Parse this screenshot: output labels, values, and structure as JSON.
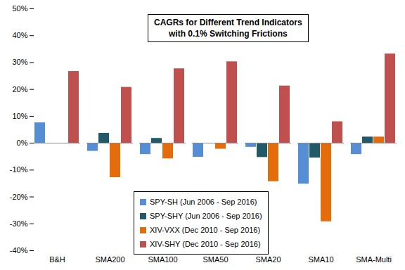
{
  "chart_data": {
    "type": "bar",
    "title": "CAGRs for Different Trend Indicators",
    "subtitle": "with 0.1% Switching Frictions",
    "categories": [
      "B&H",
      "SMA200",
      "SMA100",
      "SMA50",
      "SMA20",
      "SMA10",
      "SMA-Multi"
    ],
    "series": [
      {
        "name": "SPY-SH (Jun 2006 - Sep 2016)",
        "color": "#558ed5",
        "values": [
          7.6,
          -3.0,
          -4.2,
          -5.2,
          -1.5,
          -15.2,
          -4.2
        ]
      },
      {
        "name": "SPY-SHY (Jun 2006 - Sep 2016)",
        "color": "#215968",
        "values": [
          null,
          3.7,
          1.8,
          0,
          -5.3,
          -5.5,
          2.3
        ]
      },
      {
        "name": "XIV-VXX (Dec 2010 - Sep 2016)",
        "color": "#e46c0a",
        "values": [
          null,
          -12.8,
          -5.8,
          -2.2,
          -14.3,
          -29.2,
          2.3
        ]
      },
      {
        "name": "XIV-SHY (Dec 2010 - Sep 2016)",
        "color": "#c0504d",
        "values": [
          26.7,
          20.8,
          27.7,
          30.3,
          21.3,
          8.0,
          33.2
        ]
      }
    ],
    "ylim": [
      -40,
      50
    ],
    "yticks": [
      {
        "value": -40,
        "label": "-40%"
      },
      {
        "value": -30,
        "label": "-30%"
      },
      {
        "value": -20,
        "label": "-20%"
      },
      {
        "value": -10,
        "label": "-10%"
      },
      {
        "value": 0,
        "label": "0%"
      },
      {
        "value": 10,
        "label": "10%"
      },
      {
        "value": 20,
        "label": "20%"
      },
      {
        "value": 30,
        "label": "30%"
      },
      {
        "value": 40,
        "label": "40%"
      },
      {
        "value": 50,
        "label": "50%"
      }
    ],
    "grid": false,
    "legend": "bottom-left"
  }
}
